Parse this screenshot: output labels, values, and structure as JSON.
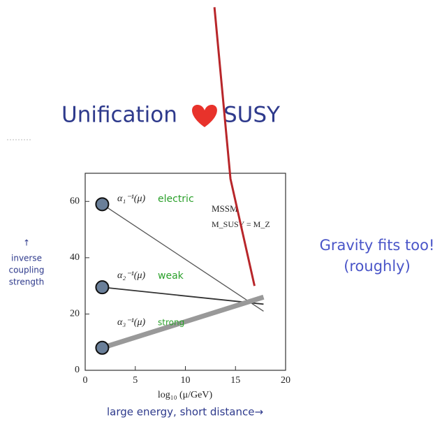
{
  "chart_data": {
    "type": "line",
    "title": "Unification",
    "title_after_heart": "SUSY",
    "xlabel": "log₁₀ (μ/GeV)",
    "xlim": [
      0,
      20
    ],
    "xticks": [
      0,
      5,
      10,
      15,
      20
    ],
    "ylim": [
      0,
      70
    ],
    "yticks": [
      0,
      20,
      40,
      60
    ],
    "series": [
      {
        "name": "electric",
        "label": "α₁⁻¹(μ)",
        "color": "#555555",
        "x": [
          1.7,
          17.8
        ],
        "values": [
          59,
          21
        ]
      },
      {
        "name": "weak",
        "label": "α₂⁻¹(μ)",
        "color": "#333333",
        "x": [
          1.7,
          17.8
        ],
        "values": [
          29.5,
          23.5
        ]
      },
      {
        "name": "strong",
        "label": "α₃⁻¹(μ)",
        "color": "#999999",
        "x": [
          1.7,
          17.8
        ],
        "values": [
          8,
          26
        ]
      },
      {
        "color": "#b8262a",
        "x": [
          12.9,
          14.5,
          16.9
        ],
        "values": [
          129,
          68,
          30
        ]
      }
    ],
    "annotations": {
      "mssm": "MSSM",
      "msusy": "M_SUSY = M_Z",
      "gravity": "Gravity fits too!",
      "roughly": "(roughly)",
      "arrow": "↑",
      "ylabel": [
        "inverse",
        "coupling",
        "strength"
      ],
      "xnote": "large energy, short distance→"
    }
  }
}
